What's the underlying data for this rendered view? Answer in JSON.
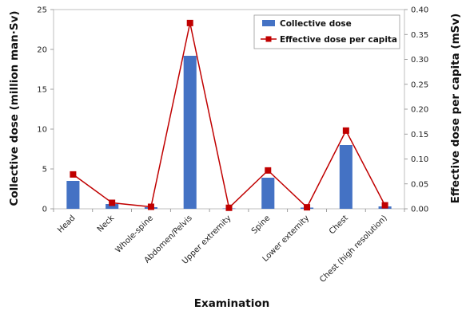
{
  "chart_data": {
    "type": "bar",
    "xlabel": "Examination",
    "ylabel": "Collective dose (million man·Sv)",
    "y2label": "Effective dose per capita (mSv)",
    "categories": [
      "Head",
      "Neck",
      "Whole-spine",
      "Abdomen/Pelvis",
      "Upper extremity",
      "Spine",
      "Lower extemity",
      "Chest",
      "Chest (high resolution)"
    ],
    "ylim": [
      0,
      25
    ],
    "yticks": [
      0,
      5,
      10,
      15,
      20,
      25
    ],
    "y2lim": [
      0,
      0.4
    ],
    "y2ticks": [
      "0.00",
      "0.05",
      "0.10",
      "0.15",
      "0.20",
      "0.25",
      "0.30",
      "0.35",
      "0.40"
    ],
    "series": [
      {
        "name": "Collective dose",
        "type": "bar",
        "axis": "left",
        "color": "#4472C4",
        "values": [
          3.5,
          0.6,
          0.2,
          19.2,
          0.05,
          3.9,
          0.15,
          8.0,
          0.3
        ]
      },
      {
        "name": "Effective dose per capita",
        "type": "line",
        "axis": "right",
        "color": "#C00000",
        "values": [
          0.069,
          0.012,
          0.004,
          0.373,
          0.002,
          0.077,
          0.003,
          0.157,
          0.007
        ]
      }
    ],
    "legend": "top-right",
    "grid": false
  }
}
